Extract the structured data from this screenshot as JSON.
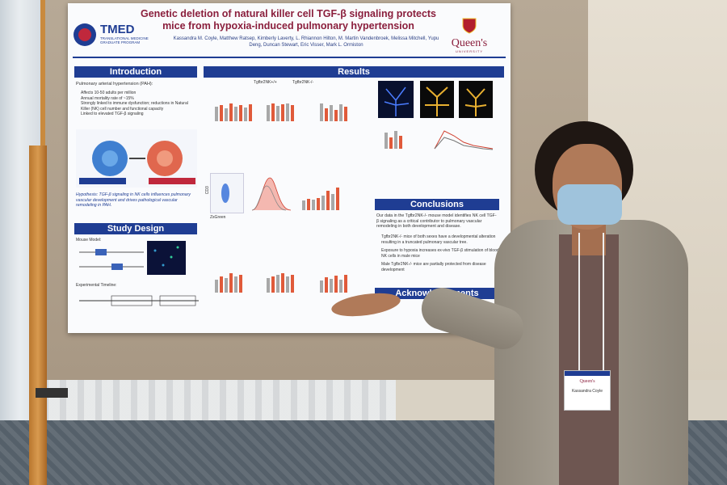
{
  "poster": {
    "title": "Genetic deletion of natural killer cell TGF-β signaling protects mice from hypoxia-induced pulmonary hypertension",
    "authors": "Kassandra M. Coyle, Matthew Ratsep, Kimberly Laverty, L. Rhiannon Hilton, M. Martin Vandenbroek, Melissa Mitchell, Yupu Deng, Duncan Stewart, Eric Visser, Mark L. Ormiston",
    "logo_left_name": "TMED",
    "logo_left_sub": "TRANSLATIONAL MEDICINE\nGRADUATE PROGRAM",
    "logo_right_name": "Queen's",
    "logo_right_sub": "UNIVERSITY",
    "sections": {
      "introduction": "Introduction",
      "results": "Results",
      "study_design": "Study Design",
      "conclusions": "Conclusions",
      "acknowledgements": "Acknowledgements"
    },
    "intro_lead": "Pulmonary arterial hypertension (PAH):",
    "intro_bullets": [
      "Affects 10-50 adults per million",
      "Annual mortality rate of ~15%",
      "Strongly linked to immune dysfunction; reductions in Natural Killer (NK) cell number and functional capacity",
      "Linked to elevated TGF-β signaling"
    ],
    "hypothesis": "Hypothesis: TGF-β signaling in NK cells influences pulmonary vascular development and drives pathological vascular remodeling in PAH.",
    "study_mouse_model": "Mouse Model:",
    "study_timeline": "Experimental Timeline:",
    "conclusions_lead": "Our data in the Tgfbr2NK-/- mouse model identifies NK cell TGF-β signaling as a critical contributor to pulmonary vascular remodeling in both development and disease.",
    "conclusions_bullets": [
      "Tgfbr2NK-/- mice of both sexes have a developmental alteration resulting in a truncated pulmonary vascular tree.",
      "Exposure to hypoxia increases ex-vivo TGF-β stimulation of blood NK cells in male mice",
      "Male Tgfbr2NK-/- mice are partially protected from disease development"
    ],
    "legend_wt": "Tgfbr2NK+/+",
    "legend_ko": "Tgfbr2NK-/-",
    "axis_zsgreen": "ZsGreen",
    "axis_cd3": "CD3"
  },
  "badge": {
    "org": "Queen's",
    "name": "Kassandra Coyle"
  },
  "colors": {
    "band": "#1f3d93",
    "title": "#8a1e3c",
    "bar_ko": "#e05a3a",
    "bar_wt": "#a8a8a8"
  }
}
